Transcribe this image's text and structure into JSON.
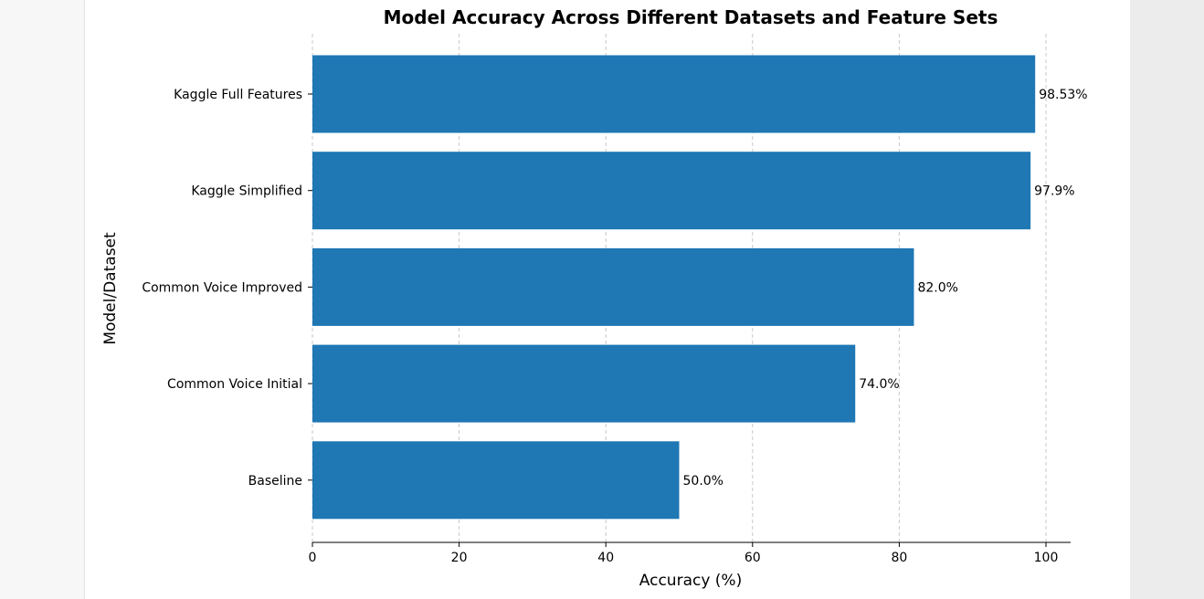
{
  "chart_data": {
    "type": "bar",
    "orientation": "horizontal",
    "title": "Model Accuracy Across Different Datasets and Feature Sets",
    "xlabel": "Accuracy (%)",
    "ylabel": "Model/Dataset",
    "categories": [
      "Kaggle Full Features",
      "Kaggle Simplified",
      "Common Voice Improved",
      "Common Voice Initial",
      "Baseline"
    ],
    "values": [
      98.53,
      97.9,
      82.0,
      74.0,
      50.0
    ],
    "value_labels": [
      "98.53%",
      "97.9%",
      "82.0%",
      "74.0%",
      "50.0%"
    ],
    "xticks": [
      0,
      20,
      40,
      60,
      80,
      100
    ],
    "xtick_labels": [
      "0",
      "20",
      "40",
      "60",
      "80",
      "100"
    ],
    "xlim": [
      0,
      103.5
    ],
    "grid": "vertical-dashed",
    "bar_color": "#1f77b4",
    "grid_color": "#c8c8c8"
  }
}
